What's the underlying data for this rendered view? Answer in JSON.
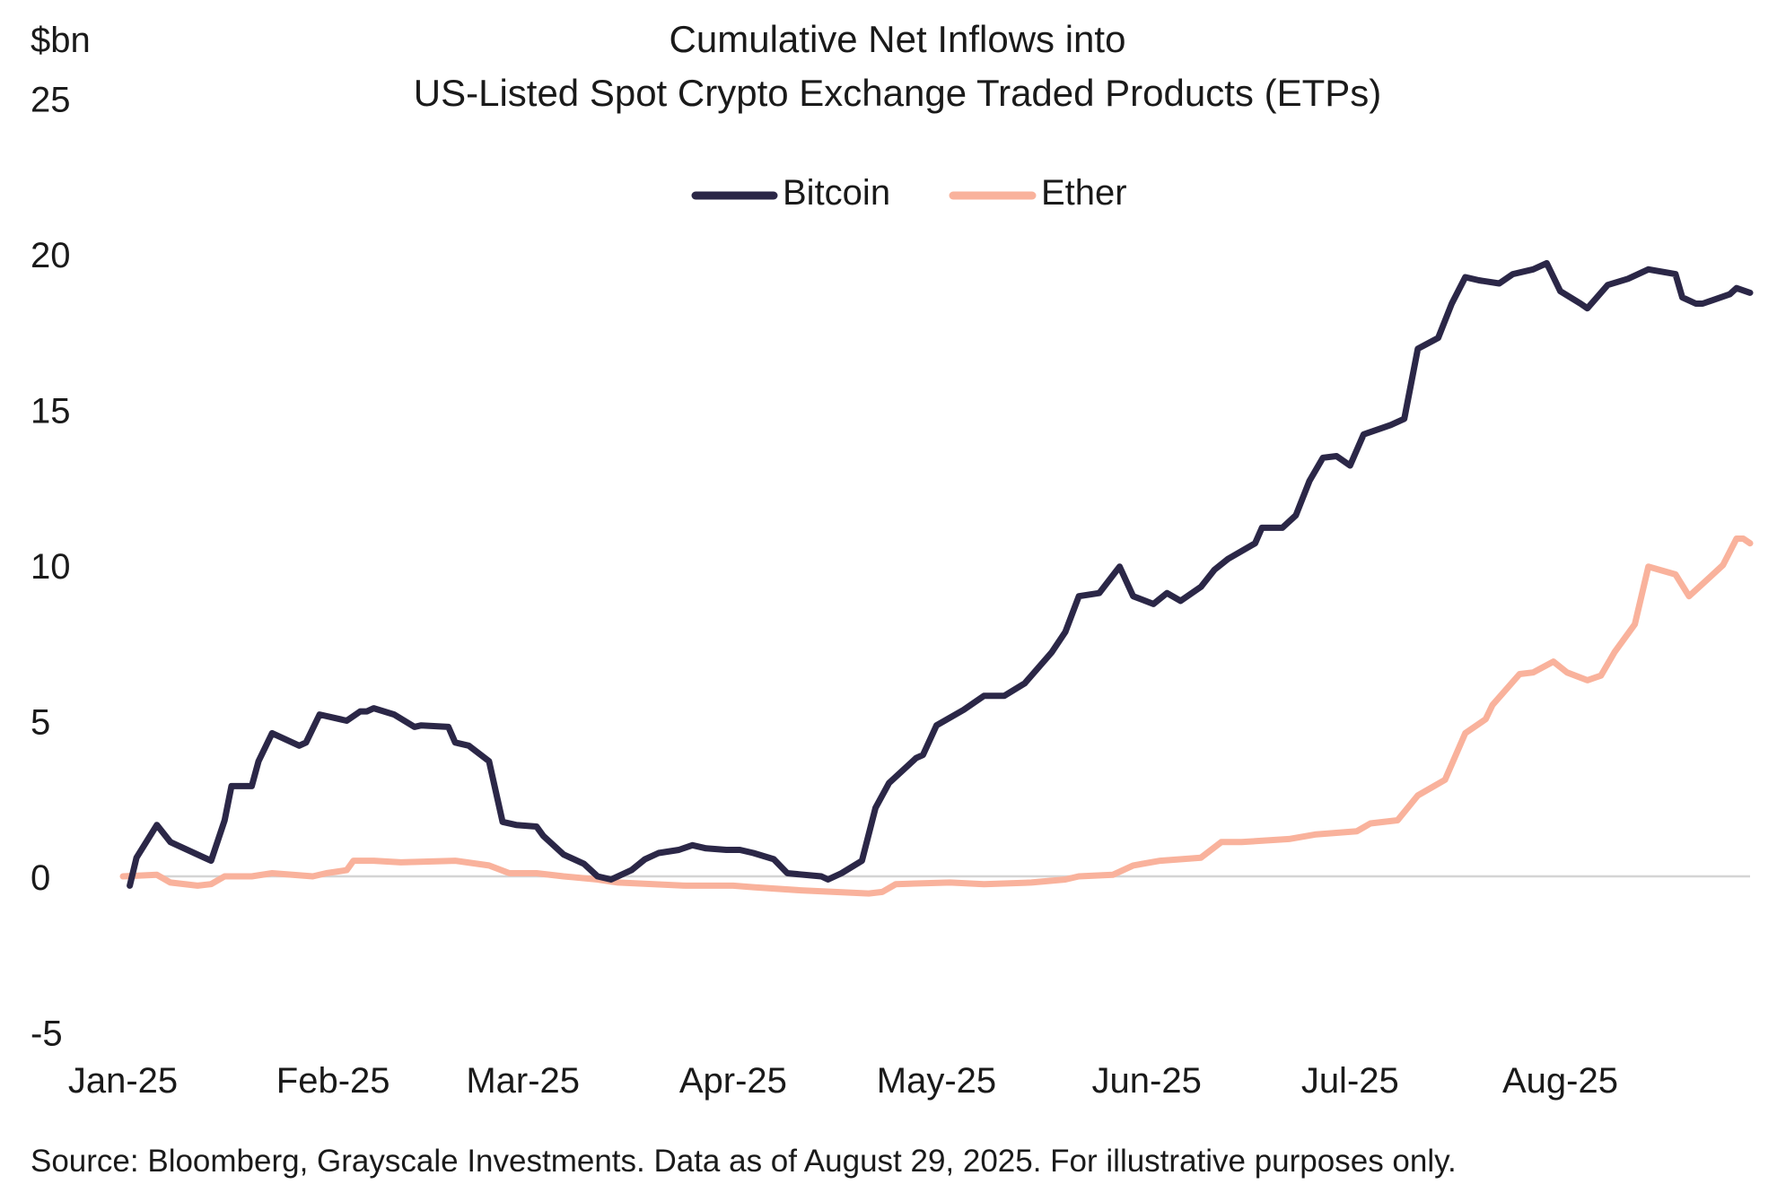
{
  "chart_data": {
    "type": "line",
    "title": "Cumulative Net Inflows into",
    "subtitle": "US-Listed Spot Crypto Exchange Traded Products (ETPs)",
    "ylabel": "$bn",
    "xlabel": "",
    "ylim": [
      -5,
      25
    ],
    "yticks": [
      "25",
      "20",
      "15",
      "10",
      "5",
      "0",
      "-5"
    ],
    "ytick_values": [
      25,
      20,
      15,
      10,
      5,
      0,
      -5
    ],
    "xlim": [
      "2025-01-01",
      "2025-08-29"
    ],
    "xticks": [
      {
        "label": "Jan-25",
        "date": "2025-01-01"
      },
      {
        "label": "Feb-25",
        "date": "2025-02-01"
      },
      {
        "label": "Mar-25",
        "date": "2025-03-01"
      },
      {
        "label": "Apr-25",
        "date": "2025-04-01"
      },
      {
        "label": "May-25",
        "date": "2025-05-01"
      },
      {
        "label": "Jun-25",
        "date": "2025-06-01"
      },
      {
        "label": "Jul-25",
        "date": "2025-07-01"
      },
      {
        "label": "Aug-25",
        "date": "2025-08-01"
      }
    ],
    "grid": false,
    "zero_line": true,
    "legend_position": "top-center",
    "source": "Source: Bloomberg, Grayscale Investments. Data as of August 29, 2025. For illustrative purposes only.",
    "series": [
      {
        "name": "Bitcoin",
        "color": "#2b2747",
        "points": [
          [
            "2025-01-02",
            -0.3
          ],
          [
            "2025-01-03",
            0.6
          ],
          [
            "2025-01-06",
            1.65
          ],
          [
            "2025-01-08",
            1.1
          ],
          [
            "2025-01-13",
            0.6
          ],
          [
            "2025-01-14",
            0.5
          ],
          [
            "2025-01-16",
            1.8
          ],
          [
            "2025-01-17",
            2.9
          ],
          [
            "2025-01-20",
            2.9
          ],
          [
            "2025-01-21",
            3.7
          ],
          [
            "2025-01-23",
            4.6
          ],
          [
            "2025-01-27",
            4.2
          ],
          [
            "2025-01-28",
            4.3
          ],
          [
            "2025-01-30",
            5.2
          ],
          [
            "2025-02-03",
            5.0
          ],
          [
            "2025-02-05",
            5.3
          ],
          [
            "2025-02-06",
            5.3
          ],
          [
            "2025-02-07",
            5.4
          ],
          [
            "2025-02-10",
            5.2
          ],
          [
            "2025-02-13",
            4.8
          ],
          [
            "2025-02-14",
            4.85
          ],
          [
            "2025-02-18",
            4.8
          ],
          [
            "2025-02-19",
            4.3
          ],
          [
            "2025-02-21",
            4.2
          ],
          [
            "2025-02-24",
            3.7
          ],
          [
            "2025-02-26",
            1.75
          ],
          [
            "2025-02-28",
            1.65
          ],
          [
            "2025-03-03",
            1.6
          ],
          [
            "2025-03-04",
            1.3
          ],
          [
            "2025-03-07",
            0.7
          ],
          [
            "2025-03-10",
            0.4
          ],
          [
            "2025-03-12",
            0.0
          ],
          [
            "2025-03-14",
            -0.1
          ],
          [
            "2025-03-17",
            0.2
          ],
          [
            "2025-03-19",
            0.55
          ],
          [
            "2025-03-21",
            0.75
          ],
          [
            "2025-03-24",
            0.85
          ],
          [
            "2025-03-26",
            1.0
          ],
          [
            "2025-03-28",
            0.9
          ],
          [
            "2025-03-31",
            0.85
          ],
          [
            "2025-04-02",
            0.85
          ],
          [
            "2025-04-04",
            0.75
          ],
          [
            "2025-04-07",
            0.55
          ],
          [
            "2025-04-09",
            0.1
          ],
          [
            "2025-04-14",
            0.0
          ],
          [
            "2025-04-15",
            -0.1
          ],
          [
            "2025-04-17",
            0.1
          ],
          [
            "2025-04-20",
            0.5
          ],
          [
            "2025-04-22",
            2.2
          ],
          [
            "2025-04-24",
            3.0
          ],
          [
            "2025-04-28",
            3.8
          ],
          [
            "2025-04-29",
            3.9
          ],
          [
            "2025-05-01",
            4.85
          ],
          [
            "2025-05-05",
            5.35
          ],
          [
            "2025-05-08",
            5.8
          ],
          [
            "2025-05-11",
            5.8
          ],
          [
            "2025-05-14",
            6.2
          ],
          [
            "2025-05-18",
            7.2
          ],
          [
            "2025-05-20",
            7.85
          ],
          [
            "2025-05-22",
            9.0
          ],
          [
            "2025-05-25",
            9.1
          ],
          [
            "2025-05-28",
            9.95
          ],
          [
            "2025-05-30",
            9.0
          ],
          [
            "2025-06-02",
            8.75
          ],
          [
            "2025-06-04",
            9.1
          ],
          [
            "2025-06-06",
            8.85
          ],
          [
            "2025-06-09",
            9.3
          ],
          [
            "2025-06-11",
            9.85
          ],
          [
            "2025-06-13",
            10.2
          ],
          [
            "2025-06-17",
            10.7
          ],
          [
            "2025-06-18",
            11.2
          ],
          [
            "2025-06-21",
            11.2
          ],
          [
            "2025-06-23",
            11.6
          ],
          [
            "2025-06-25",
            12.7
          ],
          [
            "2025-06-27",
            13.45
          ],
          [
            "2025-06-29",
            13.5
          ],
          [
            "2025-07-01",
            13.2
          ],
          [
            "2025-07-03",
            14.2
          ],
          [
            "2025-07-07",
            14.5
          ],
          [
            "2025-07-09",
            14.7
          ],
          [
            "2025-07-11",
            16.95
          ],
          [
            "2025-07-14",
            17.3
          ],
          [
            "2025-07-16",
            18.4
          ],
          [
            "2025-07-18",
            19.25
          ],
          [
            "2025-07-20",
            19.15
          ],
          [
            "2025-07-23",
            19.05
          ],
          [
            "2025-07-25",
            19.35
          ],
          [
            "2025-07-28",
            19.5
          ],
          [
            "2025-07-30",
            19.7
          ],
          [
            "2025-08-01",
            18.8
          ],
          [
            "2025-08-04",
            18.4
          ],
          [
            "2025-08-05",
            18.25
          ],
          [
            "2025-08-08",
            19.0
          ],
          [
            "2025-08-11",
            19.2
          ],
          [
            "2025-08-14",
            19.5
          ],
          [
            "2025-08-18",
            19.35
          ],
          [
            "2025-08-19",
            18.6
          ],
          [
            "2025-08-21",
            18.4
          ],
          [
            "2025-08-22",
            18.4
          ],
          [
            "2025-08-26",
            18.7
          ],
          [
            "2025-08-27",
            18.9
          ],
          [
            "2025-08-29",
            18.75
          ]
        ]
      },
      {
        "name": "Ether",
        "color": "#f9b29c",
        "points": [
          [
            "2025-01-01",
            0.0
          ],
          [
            "2025-01-06",
            0.05
          ],
          [
            "2025-01-08",
            -0.2
          ],
          [
            "2025-01-12",
            -0.3
          ],
          [
            "2025-01-14",
            -0.25
          ],
          [
            "2025-01-16",
            0.0
          ],
          [
            "2025-01-20",
            0.0
          ],
          [
            "2025-01-23",
            0.1
          ],
          [
            "2025-01-26",
            0.05
          ],
          [
            "2025-01-29",
            0.0
          ],
          [
            "2025-01-31",
            0.1
          ],
          [
            "2025-02-03",
            0.2
          ],
          [
            "2025-02-04",
            0.5
          ],
          [
            "2025-02-07",
            0.5
          ],
          [
            "2025-02-11",
            0.45
          ],
          [
            "2025-02-19",
            0.5
          ],
          [
            "2025-02-24",
            0.35
          ],
          [
            "2025-02-27",
            0.1
          ],
          [
            "2025-03-03",
            0.1
          ],
          [
            "2025-03-07",
            0.0
          ],
          [
            "2025-03-12",
            -0.1
          ],
          [
            "2025-03-15",
            -0.2
          ],
          [
            "2025-03-25",
            -0.3
          ],
          [
            "2025-04-01",
            -0.3
          ],
          [
            "2025-04-04",
            -0.35
          ],
          [
            "2025-04-11",
            -0.45
          ],
          [
            "2025-04-21",
            -0.55
          ],
          [
            "2025-04-23",
            -0.5
          ],
          [
            "2025-04-25",
            -0.25
          ],
          [
            "2025-05-03",
            -0.2
          ],
          [
            "2025-05-08",
            -0.25
          ],
          [
            "2025-05-15",
            -0.2
          ],
          [
            "2025-05-20",
            -0.1
          ],
          [
            "2025-05-22",
            0.0
          ],
          [
            "2025-05-27",
            0.05
          ],
          [
            "2025-05-30",
            0.35
          ],
          [
            "2025-06-03",
            0.5
          ],
          [
            "2025-06-09",
            0.6
          ],
          [
            "2025-06-12",
            1.1
          ],
          [
            "2025-06-15",
            1.1
          ],
          [
            "2025-06-22",
            1.2
          ],
          [
            "2025-06-26",
            1.35
          ],
          [
            "2025-07-02",
            1.45
          ],
          [
            "2025-07-04",
            1.7
          ],
          [
            "2025-07-08",
            1.8
          ],
          [
            "2025-07-11",
            2.6
          ],
          [
            "2025-07-13",
            2.85
          ],
          [
            "2025-07-15",
            3.1
          ],
          [
            "2025-07-18",
            4.6
          ],
          [
            "2025-07-21",
            5.05
          ],
          [
            "2025-07-22",
            5.5
          ],
          [
            "2025-07-26",
            6.5
          ],
          [
            "2025-07-28",
            6.55
          ],
          [
            "2025-07-31",
            6.9
          ],
          [
            "2025-08-02",
            6.55
          ],
          [
            "2025-08-05",
            6.3
          ],
          [
            "2025-08-07",
            6.45
          ],
          [
            "2025-08-09",
            7.2
          ],
          [
            "2025-08-12",
            8.1
          ],
          [
            "2025-08-14",
            9.95
          ],
          [
            "2025-08-18",
            9.7
          ],
          [
            "2025-08-20",
            9.0
          ],
          [
            "2025-08-23",
            9.6
          ],
          [
            "2025-08-25",
            10.0
          ],
          [
            "2025-08-27",
            10.85
          ],
          [
            "2025-08-28",
            10.85
          ],
          [
            "2025-08-29",
            10.7
          ]
        ]
      }
    ]
  }
}
